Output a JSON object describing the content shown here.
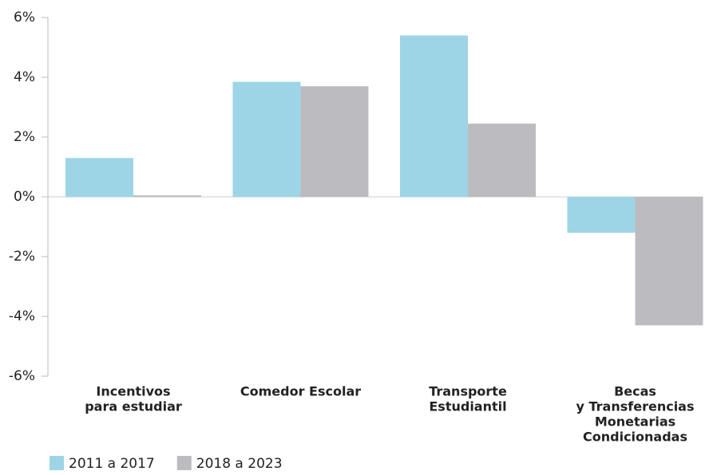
{
  "chart_data": {
    "type": "bar",
    "categories": [
      [
        "Incentivos",
        "para estudiar"
      ],
      [
        "Comedor Escolar"
      ],
      [
        "Transporte",
        "Estudiantil"
      ],
      [
        "Becas",
        "y Transferencias",
        "Monetarias",
        "Condicionadas"
      ]
    ],
    "series": [
      {
        "name": "2011 a 2017",
        "color": "#9dd5e6",
        "values": [
          1.3,
          3.85,
          5.4,
          -1.2
        ]
      },
      {
        "name": "2018 a 2023",
        "color": "#bcbcc0",
        "values": [
          0.05,
          3.7,
          2.45,
          -4.3
        ]
      }
    ],
    "ylim": [
      -6,
      6
    ],
    "yticks": [
      {
        "value": -6,
        "label": "-6%"
      },
      {
        "value": -4,
        "label": "-4%"
      },
      {
        "value": -2,
        "label": "-2%"
      },
      {
        "value": 0,
        "label": "0%"
      },
      {
        "value": 2,
        "label": "2%"
      },
      {
        "value": 4,
        "label": "4%"
      },
      {
        "value": 6,
        "label": "6%"
      }
    ],
    "legend": "bottom-left"
  }
}
